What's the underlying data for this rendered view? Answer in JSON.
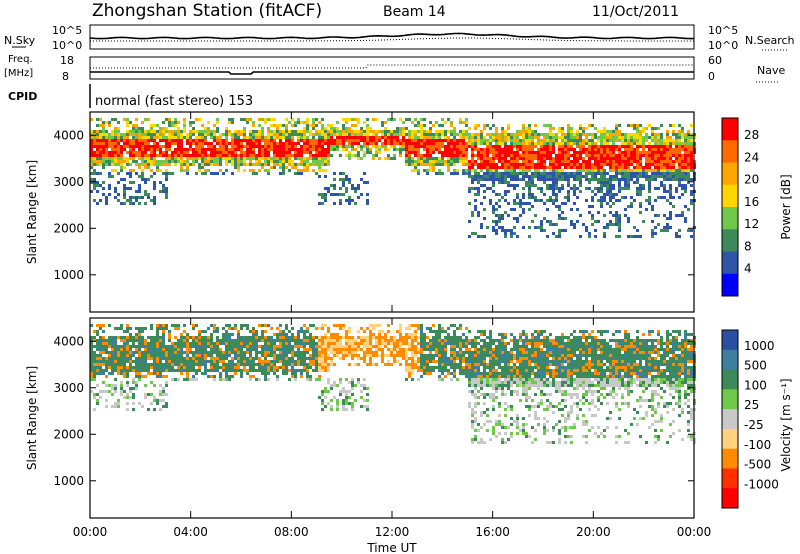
{
  "header": {
    "title": "Zhongshan Station (fitACF)",
    "beam": "Beam 14",
    "date": "11/Oct/2011",
    "mode": "normal (fast stereo) 153"
  },
  "strips": {
    "nsky_label": "N.Sky",
    "nsky_ticks": [
      "10^5",
      "10^0"
    ],
    "nsearch_label": "N.Search",
    "nsearch_ticks": [
      "10^5",
      "10^0"
    ],
    "freq_label_1": "Freq.",
    "freq_label_2": "[MHz]",
    "freq_ticks": [
      "18",
      "8"
    ],
    "nave_label": "Nave",
    "nave_ticks": [
      "60",
      "0"
    ],
    "cpid_label": "CPID"
  },
  "chart_data": [
    {
      "type": "heatmap",
      "name": "power",
      "ylabel": "Slant Range [km]",
      "ylim": [
        200,
        4500
      ],
      "yticks": [
        "4000",
        "3000",
        "2000",
        "1000"
      ],
      "xlim": [
        0,
        24
      ],
      "xticks": [
        "00:00",
        "04:00",
        "08:00",
        "12:00",
        "16:00",
        "20:00",
        "00:00"
      ],
      "colorbar": {
        "label": "Power [dB]",
        "ticks": [
          "28",
          "24",
          "20",
          "16",
          "12",
          "8",
          "4"
        ],
        "colors": [
          "#ff0000",
          "#ff6a00",
          "#ffa500",
          "#ffd700",
          "#6ec84a",
          "#3c8a5a",
          "#2f55a8",
          "#0000ff"
        ]
      }
    },
    {
      "type": "heatmap",
      "name": "velocity",
      "ylabel": "Slant Range [km]",
      "ylim": [
        200,
        4500
      ],
      "yticks": [
        "4000",
        "3000",
        "2000",
        "1000"
      ],
      "xlim": [
        0,
        24
      ],
      "xticks": [
        "00:00",
        "04:00",
        "08:00",
        "12:00",
        "16:00",
        "20:00",
        "00:00"
      ],
      "xlabel": "Time UT",
      "colorbar": {
        "label": "Velocity [m s⁻¹]",
        "ticks": [
          "1000",
          "500",
          "100",
          "25",
          "-25",
          "-100",
          "-500",
          "-1000"
        ],
        "colors": [
          "#2a4fa0",
          "#3c7fa0",
          "#3c8a5a",
          "#6ec84a",
          "#c8c8c8",
          "#ffd27f",
          "#ff8c00",
          "#ff3000",
          "#ff0000"
        ]
      }
    }
  ]
}
